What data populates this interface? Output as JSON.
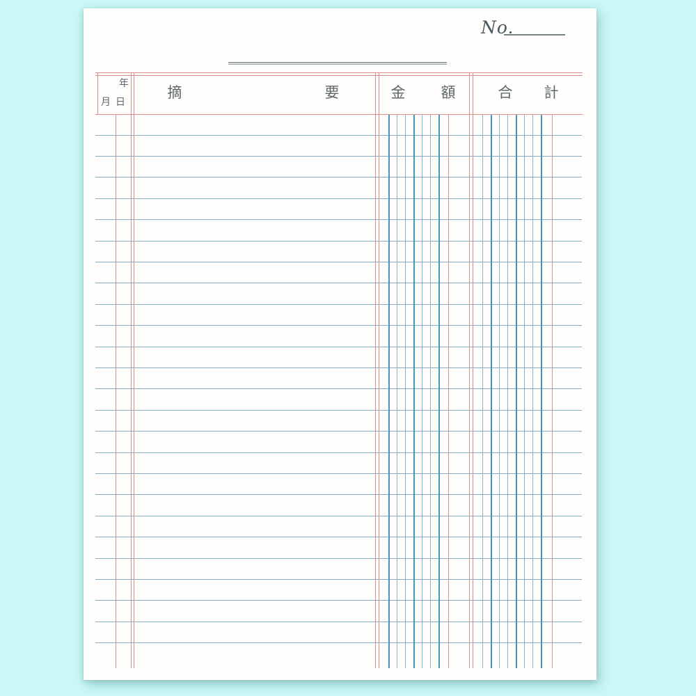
{
  "page": {
    "no_label": "No."
  },
  "header": {
    "date": {
      "year": "年",
      "month": "月",
      "day": "日"
    },
    "summary": {
      "first": "摘",
      "second": "要"
    },
    "amount": {
      "first": "金",
      "second": "額"
    },
    "total": {
      "first": "合",
      "second": "計"
    }
  },
  "ruling": {
    "row_lines": 25,
    "amount_digit_columns": 8,
    "total_digit_columns": 9
  },
  "colors": {
    "background": "#c9f8f6",
    "paper": "#fffefc",
    "red_rule": "#d98e8c",
    "red_digit_rule": "#d49795",
    "blue_row_rule": "#86abc3",
    "blue_digit_rule": "#7fb6d6",
    "blue_digit_rule_bold": "#4496c2",
    "header_ink": "#5d686c",
    "no_ink": "#47585f",
    "title_rule": "#99a3a4"
  }
}
